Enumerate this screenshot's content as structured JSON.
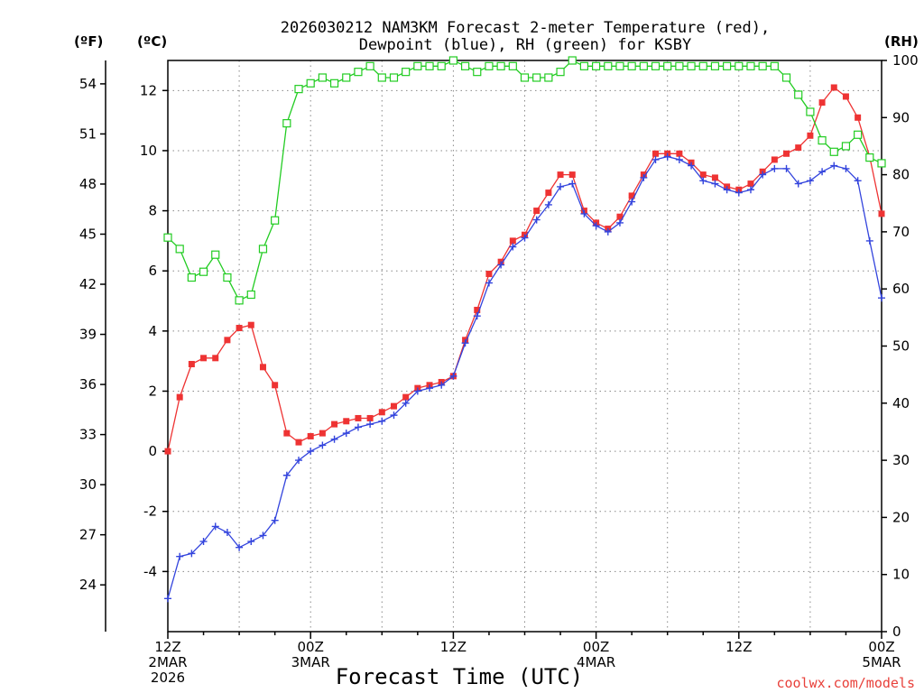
{
  "chart_data": {
    "type": "line",
    "title_line1": "2026030212 NAM3KM Forecast 2-meter Temperature (red),",
    "title_line2": "Dewpoint (blue), RH (green) for KSBY",
    "xlabel": "Forecast Time (UTC)",
    "credit": "coolwx.com/models",
    "units": {
      "fahrenheit": "(ºF)",
      "celsius": "(ºC)",
      "rh": "(RH)"
    },
    "x_range_hours": [
      0,
      60
    ],
    "celsius_range": [
      -6,
      13
    ],
    "rh_range": [
      0,
      100
    ],
    "x_ticks": [
      {
        "hour": 0,
        "lines": [
          "12Z",
          "2MAR",
          "2026"
        ]
      },
      {
        "hour": 12,
        "lines": [
          "00Z",
          "3MAR"
        ]
      },
      {
        "hour": 24,
        "lines": [
          "12Z"
        ]
      },
      {
        "hour": 36,
        "lines": [
          "00Z",
          "4MAR"
        ]
      },
      {
        "hour": 48,
        "lines": [
          "12Z"
        ]
      },
      {
        "hour": 60,
        "lines": [
          "00Z",
          "5MAR"
        ]
      }
    ],
    "celsius_ticks": [
      "-4",
      "-2",
      "0",
      "2",
      "4",
      "6",
      "8",
      "10",
      "12"
    ],
    "fahrenheit_ticks": [
      "24",
      "27",
      "30",
      "33",
      "36",
      "39",
      "42",
      "45",
      "48",
      "51",
      "54"
    ],
    "rh_ticks": [
      "0",
      "10",
      "20",
      "30",
      "40",
      "50",
      "60",
      "70",
      "80",
      "90",
      "100"
    ],
    "hours": [
      0,
      1,
      2,
      3,
      4,
      5,
      6,
      7,
      8,
      9,
      10,
      11,
      12,
      13,
      14,
      15,
      16,
      17,
      18,
      19,
      20,
      21,
      22,
      23,
      24,
      25,
      26,
      27,
      28,
      29,
      30,
      31,
      32,
      33,
      34,
      35,
      36,
      37,
      38,
      39,
      40,
      41,
      42,
      43,
      44,
      45,
      46,
      47,
      48,
      49,
      50,
      51,
      52,
      53,
      54,
      55,
      56,
      57,
      58,
      59,
      60
    ],
    "series": [
      {
        "name": "Temperature",
        "unit": "C",
        "color": "#ee3333",
        "marker": "filled-square",
        "values": [
          0.0,
          1.8,
          2.9,
          3.1,
          3.1,
          3.7,
          4.1,
          4.2,
          2.8,
          2.2,
          0.6,
          0.3,
          0.5,
          0.6,
          0.9,
          1.0,
          1.1,
          1.1,
          1.3,
          1.5,
          1.8,
          2.1,
          2.2,
          2.3,
          2.5,
          3.7,
          4.7,
          5.9,
          6.3,
          7.0,
          7.2,
          8.0,
          8.6,
          9.2,
          9.2,
          8.0,
          7.6,
          7.4,
          7.8,
          8.5,
          9.2,
          9.9,
          9.9,
          9.9,
          9.6,
          9.2,
          9.1,
          8.8,
          8.7,
          8.9,
          9.3,
          9.7,
          9.9,
          10.1,
          10.5,
          11.6,
          12.1,
          11.8,
          11.1,
          9.8,
          7.9
        ]
      },
      {
        "name": "Dewpoint",
        "unit": "C",
        "color": "#3344dd",
        "marker": "plus",
        "values": [
          -4.9,
          -3.5,
          -3.4,
          -3.0,
          -2.5,
          -2.7,
          -3.2,
          -3.0,
          -2.8,
          -2.3,
          -0.8,
          -0.3,
          0.0,
          0.2,
          0.4,
          0.6,
          0.8,
          0.9,
          1.0,
          1.2,
          1.6,
          2.0,
          2.1,
          2.2,
          2.5,
          3.6,
          4.5,
          5.6,
          6.2,
          6.8,
          7.1,
          7.7,
          8.2,
          8.8,
          8.9,
          7.9,
          7.5,
          7.3,
          7.6,
          8.3,
          9.1,
          9.7,
          9.8,
          9.7,
          9.5,
          9.0,
          8.9,
          8.7,
          8.6,
          8.7,
          9.2,
          9.4,
          9.4,
          8.9,
          9.0,
          9.3,
          9.5,
          9.4,
          9.0,
          7.0,
          5.1
        ]
      },
      {
        "name": "RH",
        "unit": "%",
        "color": "#22cc22",
        "marker": "open-square",
        "values": [
          69,
          67,
          62,
          63,
          66,
          62,
          58,
          59,
          67,
          72,
          89,
          95,
          96,
          97,
          96,
          97,
          98,
          99,
          97,
          97,
          98,
          99,
          99,
          99,
          100,
          99,
          98,
          99,
          99,
          99,
          97,
          97,
          97,
          98,
          100,
          99,
          99,
          99,
          99,
          99,
          99,
          99,
          99,
          99,
          99,
          99,
          99,
          99,
          99,
          99,
          99,
          99,
          97,
          94,
          91,
          86,
          84,
          85,
          87,
          83,
          82
        ]
      }
    ]
  }
}
